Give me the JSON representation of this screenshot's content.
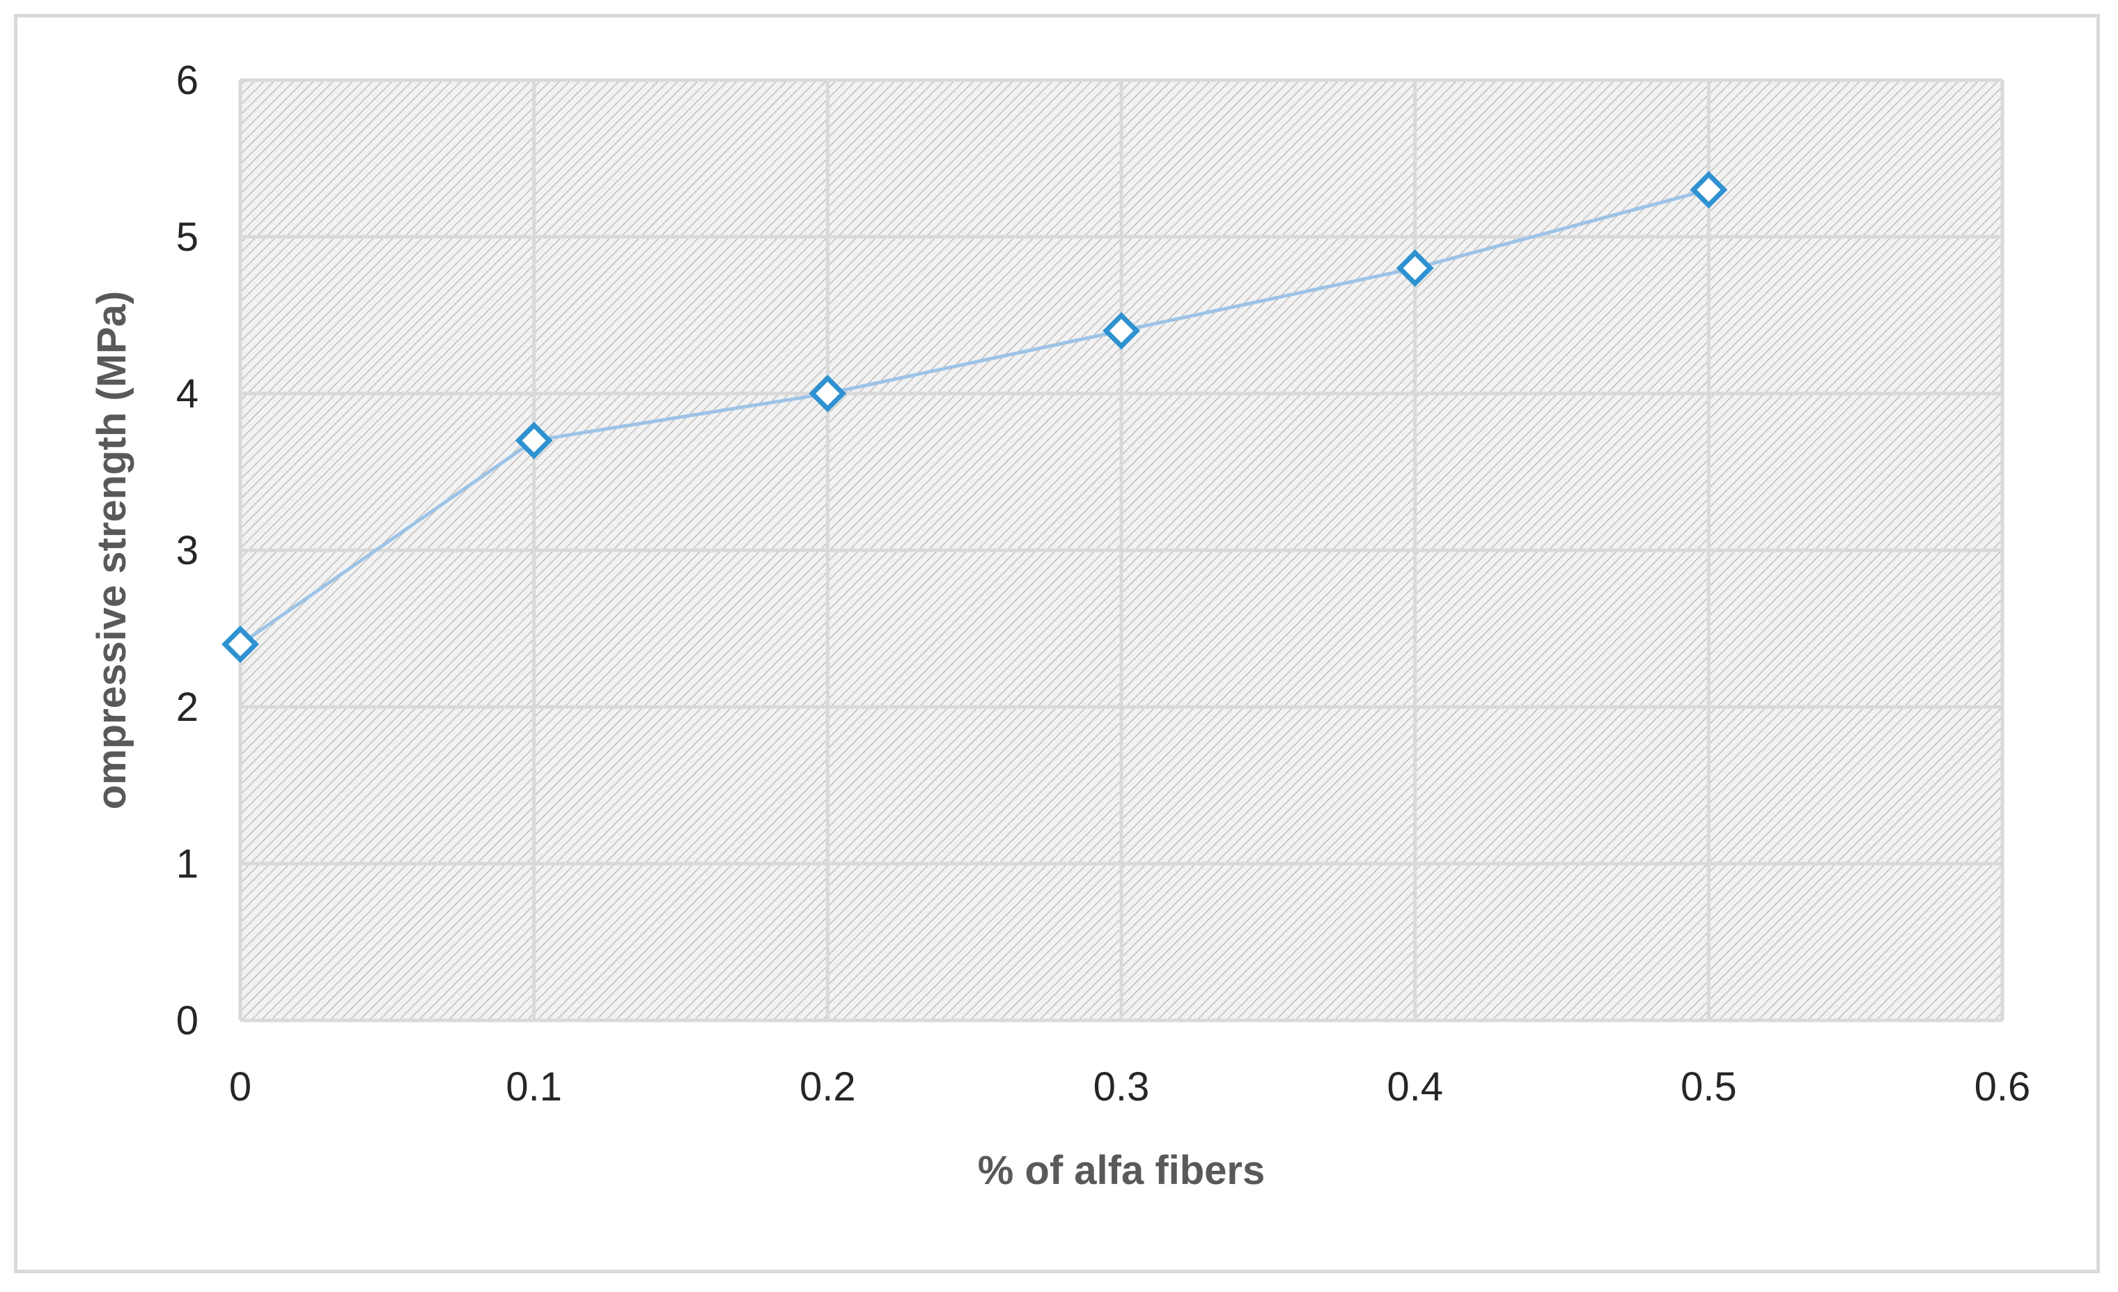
{
  "chart_data": {
    "type": "line",
    "title": "",
    "xlabel": "% of alfa fibers",
    "ylabel": "ompressive strength (MPa)",
    "xlim": [
      0,
      0.6
    ],
    "ylim": [
      0,
      6
    ],
    "x_ticks": [
      "0",
      "0.1",
      "0.2",
      "0.3",
      "0.4",
      "0.5",
      "0.6"
    ],
    "y_ticks": [
      "0",
      "1",
      "2",
      "3",
      "4",
      "5",
      "6"
    ],
    "grid": true,
    "legend": "none",
    "plot_background": "hatched light gray",
    "series": [
      {
        "x": [
          0,
          0.1,
          0.2,
          0.3,
          0.4,
          0.5
        ],
        "values": [
          2.4,
          3.7,
          4.0,
          4.4,
          4.8,
          5.3
        ],
        "color": "#9dc3e6",
        "marker": "diamond-open",
        "marker_color": "#2e92d1"
      }
    ]
  }
}
